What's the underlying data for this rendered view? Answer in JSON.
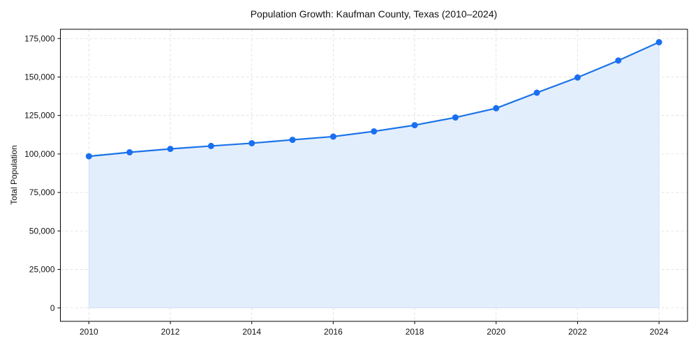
{
  "chart_data": {
    "type": "line",
    "title": "Population Growth: Kaufman County, Texas (2010–2024)",
    "xlabel": "",
    "ylabel": "Total Population",
    "x": [
      2010,
      2011,
      2012,
      2013,
      2014,
      2015,
      2016,
      2017,
      2018,
      2019,
      2020,
      2021,
      2022,
      2023,
      2024
    ],
    "series": [
      {
        "name": "Total Population",
        "values": [
          98500,
          101100,
          103300,
          105200,
          107000,
          109200,
          111300,
          114700,
          118700,
          123700,
          129700,
          139800,
          149700,
          160700,
          172600
        ],
        "area_fill": true
      }
    ],
    "x_ticks": [
      2010,
      2012,
      2014,
      2016,
      2018,
      2020,
      2022,
      2024
    ],
    "x_tick_labels": [
      "2010",
      "2012",
      "2014",
      "2016",
      "2018",
      "2020",
      "2022",
      "2024"
    ],
    "y_ticks": [
      0,
      25000,
      50000,
      75000,
      100000,
      125000,
      150000,
      175000
    ],
    "y_tick_labels": [
      "0",
      "25,000",
      "50,000",
      "75,000",
      "100,000",
      "125,000",
      "150,000",
      "175,000"
    ],
    "xlim": [
      2009.3,
      2024.7
    ],
    "ylim": [
      -8700,
      181000
    ],
    "grid": true,
    "grid_style": "dashed",
    "legend": null,
    "colors": {
      "line": "#1a73e8",
      "marker": "#1a6ff0",
      "fill": "#e3eefc",
      "fill_edge": "#c9dcf5",
      "grid": "#dddddd",
      "axis": "#000000"
    }
  }
}
